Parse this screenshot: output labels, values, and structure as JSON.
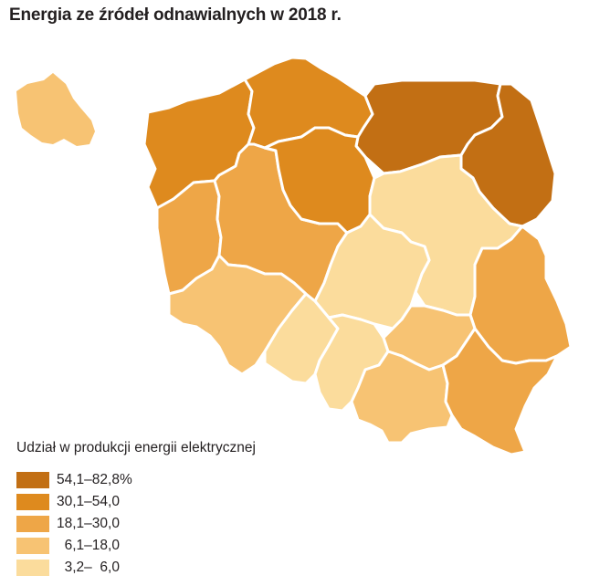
{
  "title": "Energia ze źródeł odnawialnych w 2018 r.",
  "colors": {
    "c1": "#c26f14",
    "c2": "#de8a1e",
    "c3": "#eea647",
    "c4": "#f7c373",
    "c5": "#fbdc9c"
  },
  "legend": {
    "title": "Udział w produkcji energii elektrycznej",
    "items": [
      {
        "label": "54,1–82,8%",
        "color": "#c26f14"
      },
      {
        "label": "30,1–54,0",
        "color": "#de8a1e"
      },
      {
        "label": "18,1–30,0",
        "color": "#eea647"
      },
      {
        "label": "  6,1–18,0",
        "color": "#f7c373"
      },
      {
        "label": "  3,2–  6,0",
        "color": "#fbdc9c"
      }
    ]
  },
  "regions": [
    {
      "name": "zachodniopomorskie",
      "class": "30,1–54,0"
    },
    {
      "name": "pomorskie",
      "class": "30,1–54,0"
    },
    {
      "name": "warmińsko-mazurskie",
      "class": "54,1–82,8%"
    },
    {
      "name": "podlaskie",
      "class": "54,1–82,8%"
    },
    {
      "name": "lubuskie",
      "class": "18,1–30,0"
    },
    {
      "name": "wielkopolskie",
      "class": "18,1–30,0"
    },
    {
      "name": "kujawsko-pomorskie",
      "class": "30,1–54,0"
    },
    {
      "name": "mazowieckie",
      "class": "3,2–6,0"
    },
    {
      "name": "łódzkie",
      "class": "3,2–6,0"
    },
    {
      "name": "lubelskie",
      "class": "18,1–30,0"
    },
    {
      "name": "dolnośląskie",
      "class": "6,1–18,0"
    },
    {
      "name": "opolskie",
      "class": "3,2–6,0"
    },
    {
      "name": "śląskie",
      "class": "3,2–6,0"
    },
    {
      "name": "świętokrzyskie",
      "class": "6,1–18,0"
    },
    {
      "name": "małopolskie",
      "class": "6,1–18,0"
    },
    {
      "name": "podkarpackie",
      "class": "18,1–30,0"
    }
  ],
  "inset": {
    "class": "6,1–18,0"
  }
}
